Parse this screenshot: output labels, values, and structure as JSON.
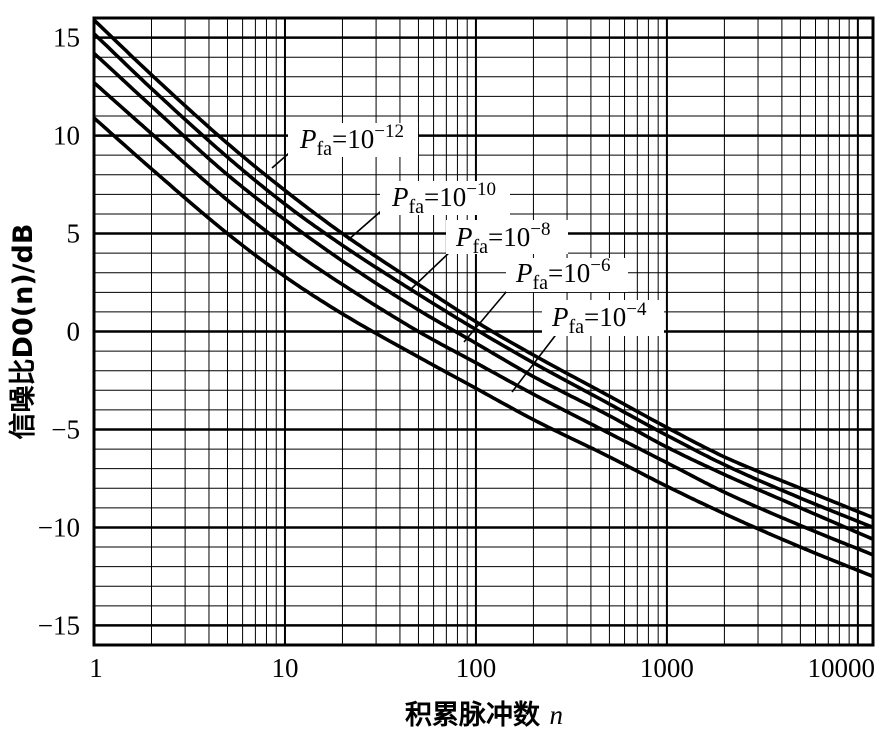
{
  "chart_data": {
    "type": "line",
    "xscale": "log",
    "xlim": [
      1,
      12000
    ],
    "ylim": [
      -16,
      16
    ],
    "grid": true,
    "xlabel": "积累脉冲数 n",
    "ylabel": "信噪比D0(n)/dB",
    "x_ticks": [
      {
        "value": 1,
        "label": "1"
      },
      {
        "value": 10,
        "label": "10"
      },
      {
        "value": 100,
        "label": "100"
      },
      {
        "value": 1000,
        "label": "1000"
      },
      {
        "value": 10000,
        "label": "10000"
      }
    ],
    "y_ticks": [
      {
        "value": 15,
        "label": "15"
      },
      {
        "value": 10,
        "label": "10"
      },
      {
        "value": 5,
        "label": "5"
      },
      {
        "value": 0,
        "label": "0"
      },
      {
        "value": -5,
        "label": "−5"
      },
      {
        "value": -10,
        "label": "−10"
      },
      {
        "value": -15,
        "label": "−15"
      }
    ],
    "series": [
      {
        "name": "P_fa=10^-12",
        "label_prefix": "P",
        "label_sub": "fa",
        "label_eq": "=10",
        "label_exp": "−12",
        "x": [
          1,
          2,
          5,
          10,
          20,
          50,
          100,
          200,
          500,
          1000,
          2000,
          5000,
          12000
        ],
        "y": [
          15.9,
          13.1,
          9.6,
          7.2,
          5.0,
          2.4,
          0.5,
          -1.2,
          -3.3,
          -4.9,
          -6.4,
          -8.0,
          -9.5
        ]
      },
      {
        "name": "P_fa=10^-10",
        "label_prefix": "P",
        "label_sub": "fa",
        "label_eq": "=10",
        "label_exp": "−10",
        "x": [
          1,
          2,
          5,
          10,
          20,
          50,
          100,
          200,
          500,
          1000,
          2000,
          5000,
          12000
        ],
        "y": [
          15.2,
          12.4,
          8.9,
          6.5,
          4.4,
          1.9,
          0.1,
          -1.6,
          -3.7,
          -5.3,
          -6.8,
          -8.5,
          -10.0
        ]
      },
      {
        "name": "P_fa=10^-8",
        "label_prefix": "P",
        "label_sub": "fa",
        "label_eq": "=10",
        "label_exp": "−8",
        "x": [
          1,
          2,
          5,
          10,
          20,
          50,
          100,
          200,
          500,
          1000,
          2000,
          5000,
          12000
        ],
        "y": [
          14.2,
          11.5,
          8.0,
          5.7,
          3.6,
          1.1,
          -0.6,
          -2.3,
          -4.3,
          -5.9,
          -7.3,
          -9.0,
          -10.6
        ]
      },
      {
        "name": "P_fa=10^-6",
        "label_prefix": "P",
        "label_sub": "fa",
        "label_eq": "=10",
        "label_exp": "−6",
        "x": [
          1,
          2,
          5,
          10,
          20,
          50,
          100,
          200,
          500,
          1000,
          2000,
          5000,
          12000
        ],
        "y": [
          12.7,
          10.1,
          6.7,
          4.4,
          2.4,
          0.0,
          -1.6,
          -3.2,
          -5.2,
          -6.7,
          -8.2,
          -9.9,
          -11.4
        ]
      },
      {
        "name": "P_fa=10^-4",
        "label_prefix": "P",
        "label_sub": "fa",
        "label_eq": "=10",
        "label_exp": "−4",
        "x": [
          1,
          2,
          5,
          10,
          20,
          50,
          100,
          200,
          500,
          1000,
          2000,
          5000,
          12000
        ],
        "y": [
          10.9,
          8.3,
          5.0,
          2.8,
          0.9,
          -1.3,
          -2.9,
          -4.5,
          -6.4,
          -7.9,
          -9.3,
          -11.0,
          -12.5
        ]
      }
    ]
  }
}
